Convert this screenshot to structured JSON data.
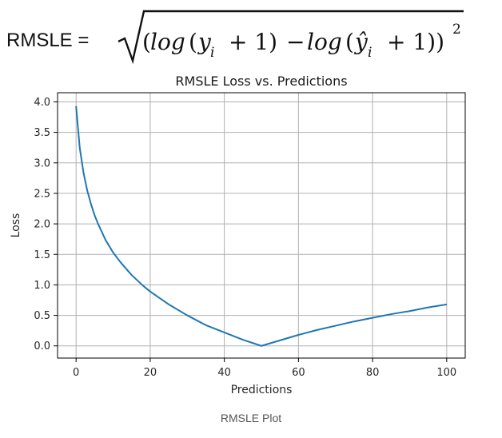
{
  "formula": {
    "lead": "RMSLE =",
    "log1": "log",
    "y": "y",
    "sub_i": "i",
    "plus1": "+ 1)",
    "minus": "−",
    "log2": "log",
    "yhat": "ŷ",
    "plus2": "+  1))",
    "open_paren": "(",
    "open_paren2": "(",
    "open_paren3": "(",
    "exponent": "2"
  },
  "caption": "RMSLE Plot",
  "chart_data": {
    "type": "line",
    "title": "RMSLE Loss vs. Predictions",
    "xlabel": "Predictions",
    "ylabel": "Loss",
    "xlim": [
      -5,
      105
    ],
    "ylim": [
      -0.2,
      4.15
    ],
    "xticks": [
      0,
      20,
      40,
      60,
      80,
      100
    ],
    "yticks": [
      0.0,
      0.5,
      1.0,
      1.5,
      2.0,
      2.5,
      3.0,
      3.5,
      4.0
    ],
    "grid": true,
    "colors": {
      "line": "#1f77b4",
      "grid": "#b0b0b0",
      "axis": "#000000"
    },
    "series": [
      {
        "x": [
          0,
          1,
          2,
          3,
          4,
          5,
          6,
          8,
          10,
          12,
          15,
          18,
          20,
          25,
          30,
          35,
          40,
          45,
          50,
          55,
          60,
          65,
          70,
          75,
          80,
          85,
          90,
          95,
          100
        ],
        "y": [
          3.93,
          3.24,
          2.84,
          2.55,
          2.33,
          2.14,
          1.99,
          1.73,
          1.53,
          1.37,
          1.16,
          0.99,
          0.89,
          0.68,
          0.5,
          0.34,
          0.22,
          0.1,
          0.0,
          0.09,
          0.18,
          0.26,
          0.33,
          0.4,
          0.46,
          0.52,
          0.57,
          0.63,
          0.68
        ]
      }
    ]
  }
}
